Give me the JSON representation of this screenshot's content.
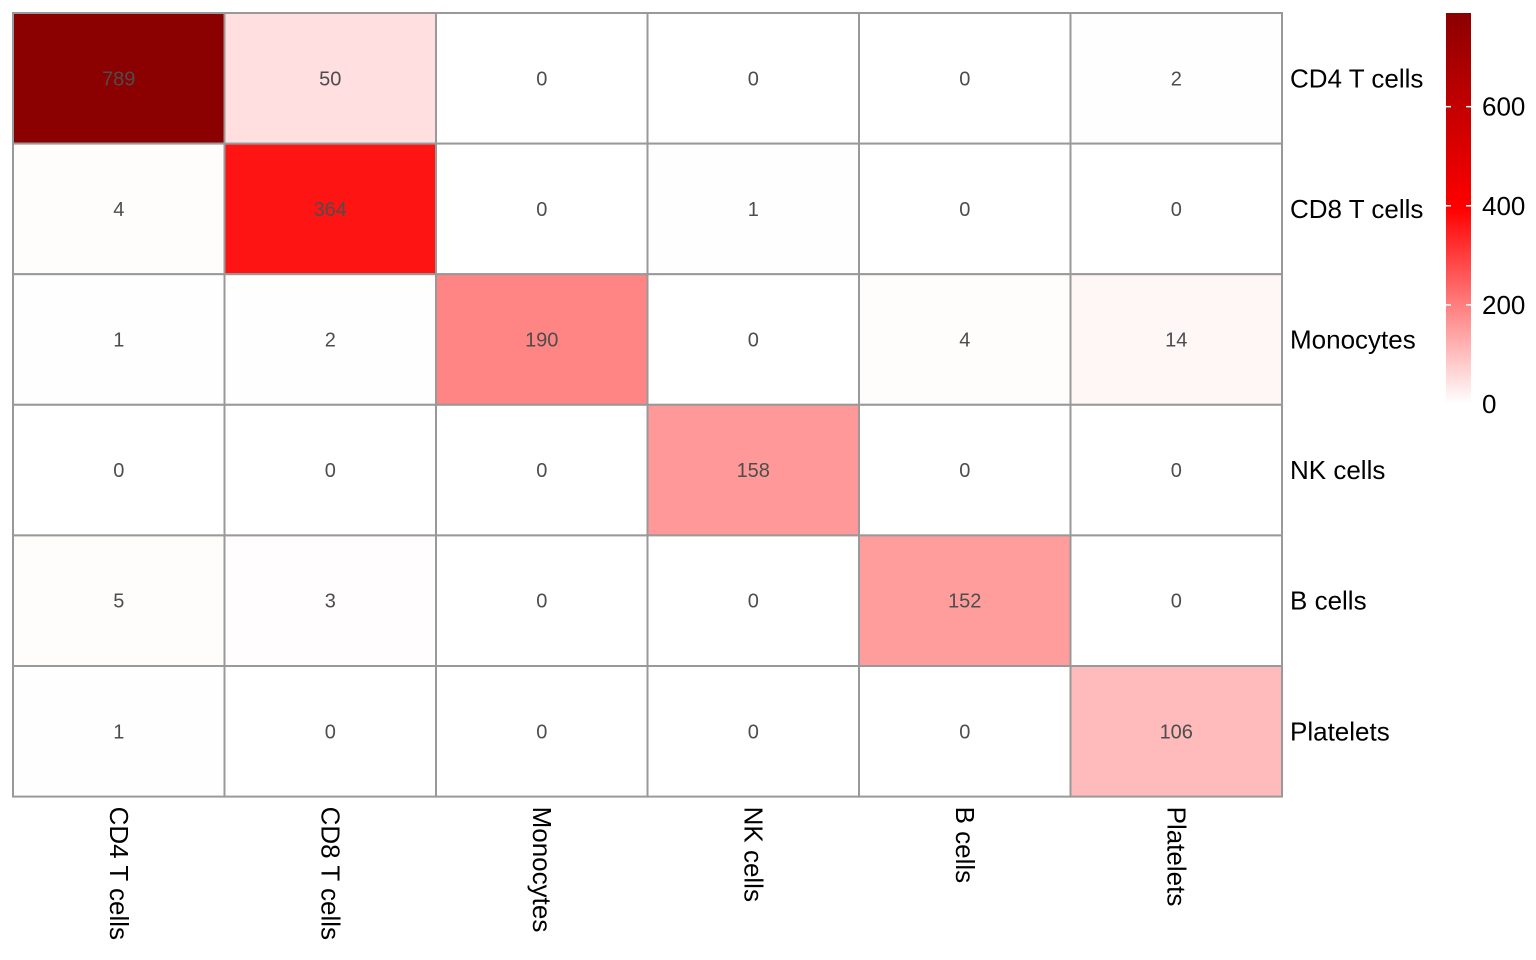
{
  "chart_data": {
    "type": "heatmap",
    "rows": [
      "CD4 T cells",
      "CD8 T cells",
      "Monocytes",
      "NK cells",
      "B cells",
      "Platelets"
    ],
    "columns": [
      "CD4 T cells",
      "CD8 T cells",
      "Monocytes",
      "NK cells",
      "B cells",
      "Platelets"
    ],
    "values": [
      [
        789,
        50,
        0,
        0,
        0,
        2
      ],
      [
        4,
        364,
        0,
        1,
        0,
        0
      ],
      [
        1,
        2,
        190,
        0,
        4,
        14
      ],
      [
        0,
        0,
        0,
        158,
        0,
        0
      ],
      [
        5,
        3,
        0,
        0,
        152,
        0
      ],
      [
        1,
        0,
        0,
        0,
        0,
        106
      ]
    ],
    "color_scale": {
      "low": "#ffffff",
      "mid": "#ff0000",
      "high": "#8b0000",
      "min": 0,
      "mid_value": 395,
      "max": 789
    },
    "legend_ticks": [
      0,
      200,
      400,
      600
    ],
    "cell_border_color": "#999999",
    "title": "",
    "xlabel": "",
    "ylabel": ""
  }
}
